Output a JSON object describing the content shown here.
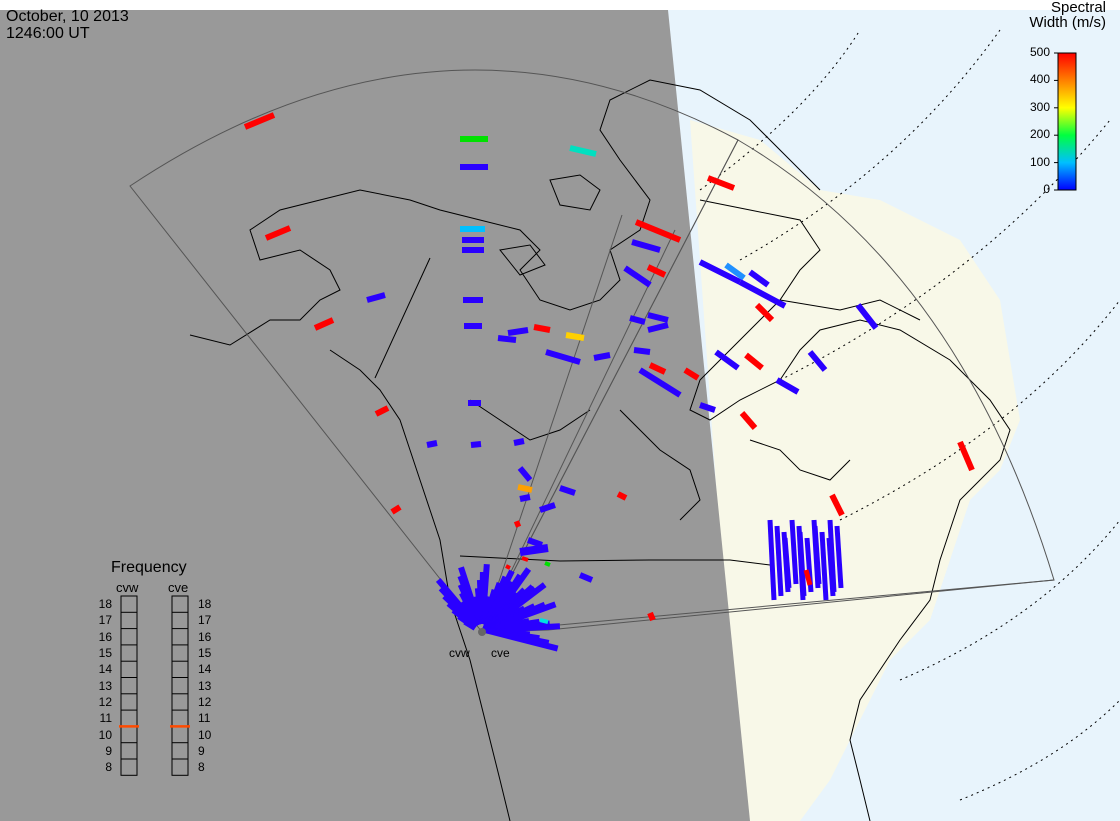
{
  "header": {
    "date": "October, 10 2013",
    "time": "1246:00 UT"
  },
  "colorbar": {
    "title_line1": "Spectral",
    "title_line2": "Width (m/s)",
    "ticks": [
      "500",
      "400",
      "300",
      "200",
      "100",
      "0"
    ],
    "min": 0,
    "max": 500
  },
  "frequency_panel": {
    "title": "Frequency",
    "left_radar": "cvw",
    "right_radar": "cve",
    "ticks": [
      "18",
      "17",
      "16",
      "15",
      "14",
      "13",
      "12",
      "11",
      "10",
      "9",
      "8"
    ],
    "cvw_value": 10.5,
    "cve_value": 10.5,
    "marker_color": "#ff4a00"
  },
  "radars": {
    "west": "cvw",
    "east": "cve"
  },
  "colors": {
    "night": "#999999",
    "day_land": "#f8f8e8",
    "day_ocean": "#e8f4fc",
    "scatter_low": "#2a00ff",
    "scatter_high": "#ff0000"
  }
}
